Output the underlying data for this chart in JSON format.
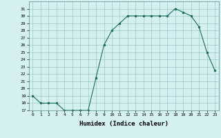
{
  "x": [
    0,
    1,
    2,
    3,
    4,
    5,
    6,
    7,
    8,
    9,
    10,
    11,
    12,
    13,
    14,
    15,
    16,
    17,
    18,
    19,
    20,
    21,
    22,
    23
  ],
  "y": [
    19,
    18,
    18,
    18,
    17,
    17,
    17,
    17,
    21.5,
    26,
    28,
    29,
    30,
    30,
    30,
    30,
    30,
    30,
    31,
    30.5,
    30,
    28.5,
    25,
    22.5
  ],
  "xlabel": "Humidex (Indice chaleur)",
  "xlim": [
    -0.5,
    23.5
  ],
  "ylim": [
    17,
    32
  ],
  "yticks": [
    17,
    18,
    19,
    20,
    21,
    22,
    23,
    24,
    25,
    26,
    27,
    28,
    29,
    30,
    31
  ],
  "xticks": [
    0,
    1,
    2,
    3,
    4,
    5,
    6,
    7,
    8,
    9,
    10,
    11,
    12,
    13,
    14,
    15,
    16,
    17,
    18,
    19,
    20,
    21,
    22,
    23
  ],
  "line_color": "#1a6b5a",
  "marker_color": "#1a6b5a",
  "bg_color": "#d4f0f0",
  "grid_color": "#a0c8c8"
}
